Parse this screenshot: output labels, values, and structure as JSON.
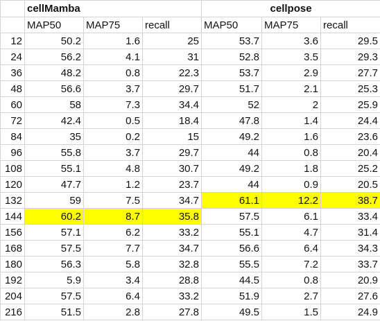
{
  "highlight_color": "#ffff00",
  "groups": [
    "cellMamba",
    "cellpose"
  ],
  "columns": [
    "MAP50",
    "MAP75",
    "recall",
    "MAP50",
    "MAP75",
    "recall"
  ],
  "rows": [
    {
      "id": "12",
      "v": [
        "50.2",
        "1.6",
        "25",
        "53.7",
        "3.6",
        "29.5"
      ],
      "hl": [
        false,
        false,
        false,
        false,
        false,
        false
      ]
    },
    {
      "id": "24",
      "v": [
        "56.2",
        "4.1",
        "31",
        "52.8",
        "3.5",
        "29.3"
      ],
      "hl": [
        false,
        false,
        false,
        false,
        false,
        false
      ]
    },
    {
      "id": "36",
      "v": [
        "48.2",
        "0.8",
        "22.3",
        "53.7",
        "2.9",
        "27.7"
      ],
      "hl": [
        false,
        false,
        false,
        false,
        false,
        false
      ]
    },
    {
      "id": "48",
      "v": [
        "56.6",
        "3.7",
        "29.7",
        "51.7",
        "2.1",
        "25.3"
      ],
      "hl": [
        false,
        false,
        false,
        false,
        false,
        false
      ]
    },
    {
      "id": "60",
      "v": [
        "58",
        "7.3",
        "34.4",
        "52",
        "2",
        "25.9"
      ],
      "hl": [
        false,
        false,
        false,
        false,
        false,
        false
      ]
    },
    {
      "id": "72",
      "v": [
        "42.4",
        "0.5",
        "18.4",
        "47.8",
        "1.4",
        "24.4"
      ],
      "hl": [
        false,
        false,
        false,
        false,
        false,
        false
      ]
    },
    {
      "id": "84",
      "v": [
        "35",
        "0.2",
        "15",
        "49.2",
        "1.6",
        "23.6"
      ],
      "hl": [
        false,
        false,
        false,
        false,
        false,
        false
      ]
    },
    {
      "id": "96",
      "v": [
        "55.8",
        "3.7",
        "29.7",
        "44",
        "0.8",
        "20.4"
      ],
      "hl": [
        false,
        false,
        false,
        false,
        false,
        false
      ]
    },
    {
      "id": "108",
      "v": [
        "55.1",
        "4.8",
        "30.7",
        "49.2",
        "1.8",
        "25.2"
      ],
      "hl": [
        false,
        false,
        false,
        false,
        false,
        false
      ]
    },
    {
      "id": "120",
      "v": [
        "47.7",
        "1.2",
        "23.7",
        "44",
        "0.9",
        "20.5"
      ],
      "hl": [
        false,
        false,
        false,
        false,
        false,
        false
      ]
    },
    {
      "id": "132",
      "v": [
        "59",
        "7.5",
        "34.7",
        "61.1",
        "12.2",
        "38.7"
      ],
      "hl": [
        false,
        false,
        false,
        true,
        true,
        true
      ]
    },
    {
      "id": "144",
      "v": [
        "60.2",
        "8.7",
        "35.8",
        "57.5",
        "6.1",
        "33.4"
      ],
      "hl": [
        true,
        true,
        true,
        false,
        false,
        false
      ]
    },
    {
      "id": "156",
      "v": [
        "57.1",
        "6.2",
        "33.2",
        "55.1",
        "4.7",
        "31.4"
      ],
      "hl": [
        false,
        false,
        false,
        false,
        false,
        false
      ]
    },
    {
      "id": "168",
      "v": [
        "57.5",
        "7.7",
        "34.7",
        "56.6",
        "6.4",
        "34.3"
      ],
      "hl": [
        false,
        false,
        false,
        false,
        false,
        false
      ]
    },
    {
      "id": "180",
      "v": [
        "56.3",
        "5.8",
        "32.8",
        "55.5",
        "7.2",
        "33.7"
      ],
      "hl": [
        false,
        false,
        false,
        false,
        false,
        false
      ]
    },
    {
      "id": "192",
      "v": [
        "5.9",
        "3.4",
        "28.8",
        "44.5",
        "0.8",
        "20.9"
      ],
      "hl": [
        false,
        false,
        false,
        false,
        false,
        false
      ]
    },
    {
      "id": "204",
      "v": [
        "57.5",
        "6.4",
        "33.2",
        "51.9",
        "2.7",
        "27.6"
      ],
      "hl": [
        false,
        false,
        false,
        false,
        false,
        false
      ]
    },
    {
      "id": "216",
      "v": [
        "51.5",
        "2.8",
        "27.8",
        "49.5",
        "1.5",
        "24.9"
      ],
      "hl": [
        false,
        false,
        false,
        false,
        false,
        false
      ]
    }
  ]
}
